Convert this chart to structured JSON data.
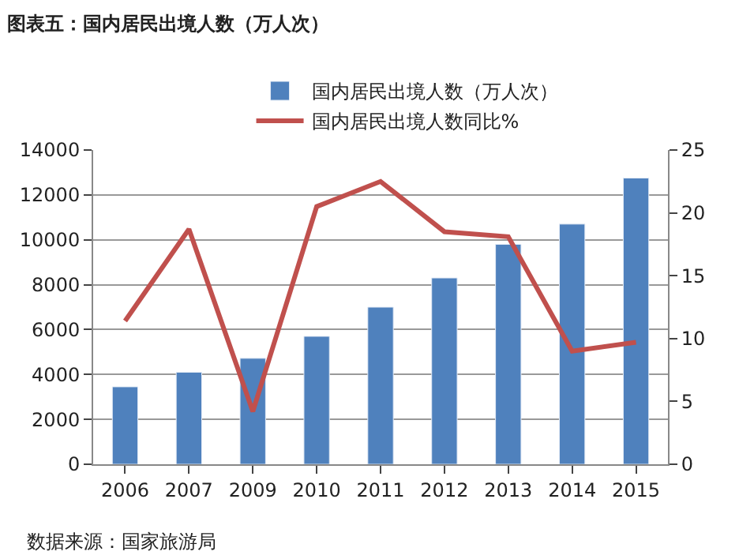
{
  "chart_data": {
    "type": "bar",
    "title": "图表五：国内居民出境人数（万人次）",
    "categories": [
      "2006",
      "2007",
      "2009",
      "2010",
      "2011",
      "2012",
      "2013",
      "2014",
      "2015"
    ],
    "series": [
      {
        "name": "国内居民出境人数（万人次）",
        "color": "#4f81bd",
        "values": [
          3450,
          4100,
          4720,
          5700,
          7000,
          8300,
          9800,
          10700,
          12750
        ]
      },
      {
        "name": "国内居民出境人数同比%",
        "color": "#c0504d",
        "type": "line",
        "axis": "y2",
        "values": [
          11.4,
          18.7,
          4.2,
          20.5,
          22.5,
          18.5,
          18.1,
          9.0,
          9.7
        ]
      }
    ],
    "ylim": [
      0,
      14000
    ],
    "yticks": [
      0,
      2000,
      4000,
      6000,
      8000,
      10000,
      12000,
      14000
    ],
    "y2lim": [
      0,
      25
    ],
    "y2ticks": [
      0,
      5,
      10,
      15,
      20,
      25
    ],
    "grid": "y",
    "legend": "top",
    "marker": "none",
    "annotations": [
      "数据来源：国家旅游局"
    ]
  }
}
